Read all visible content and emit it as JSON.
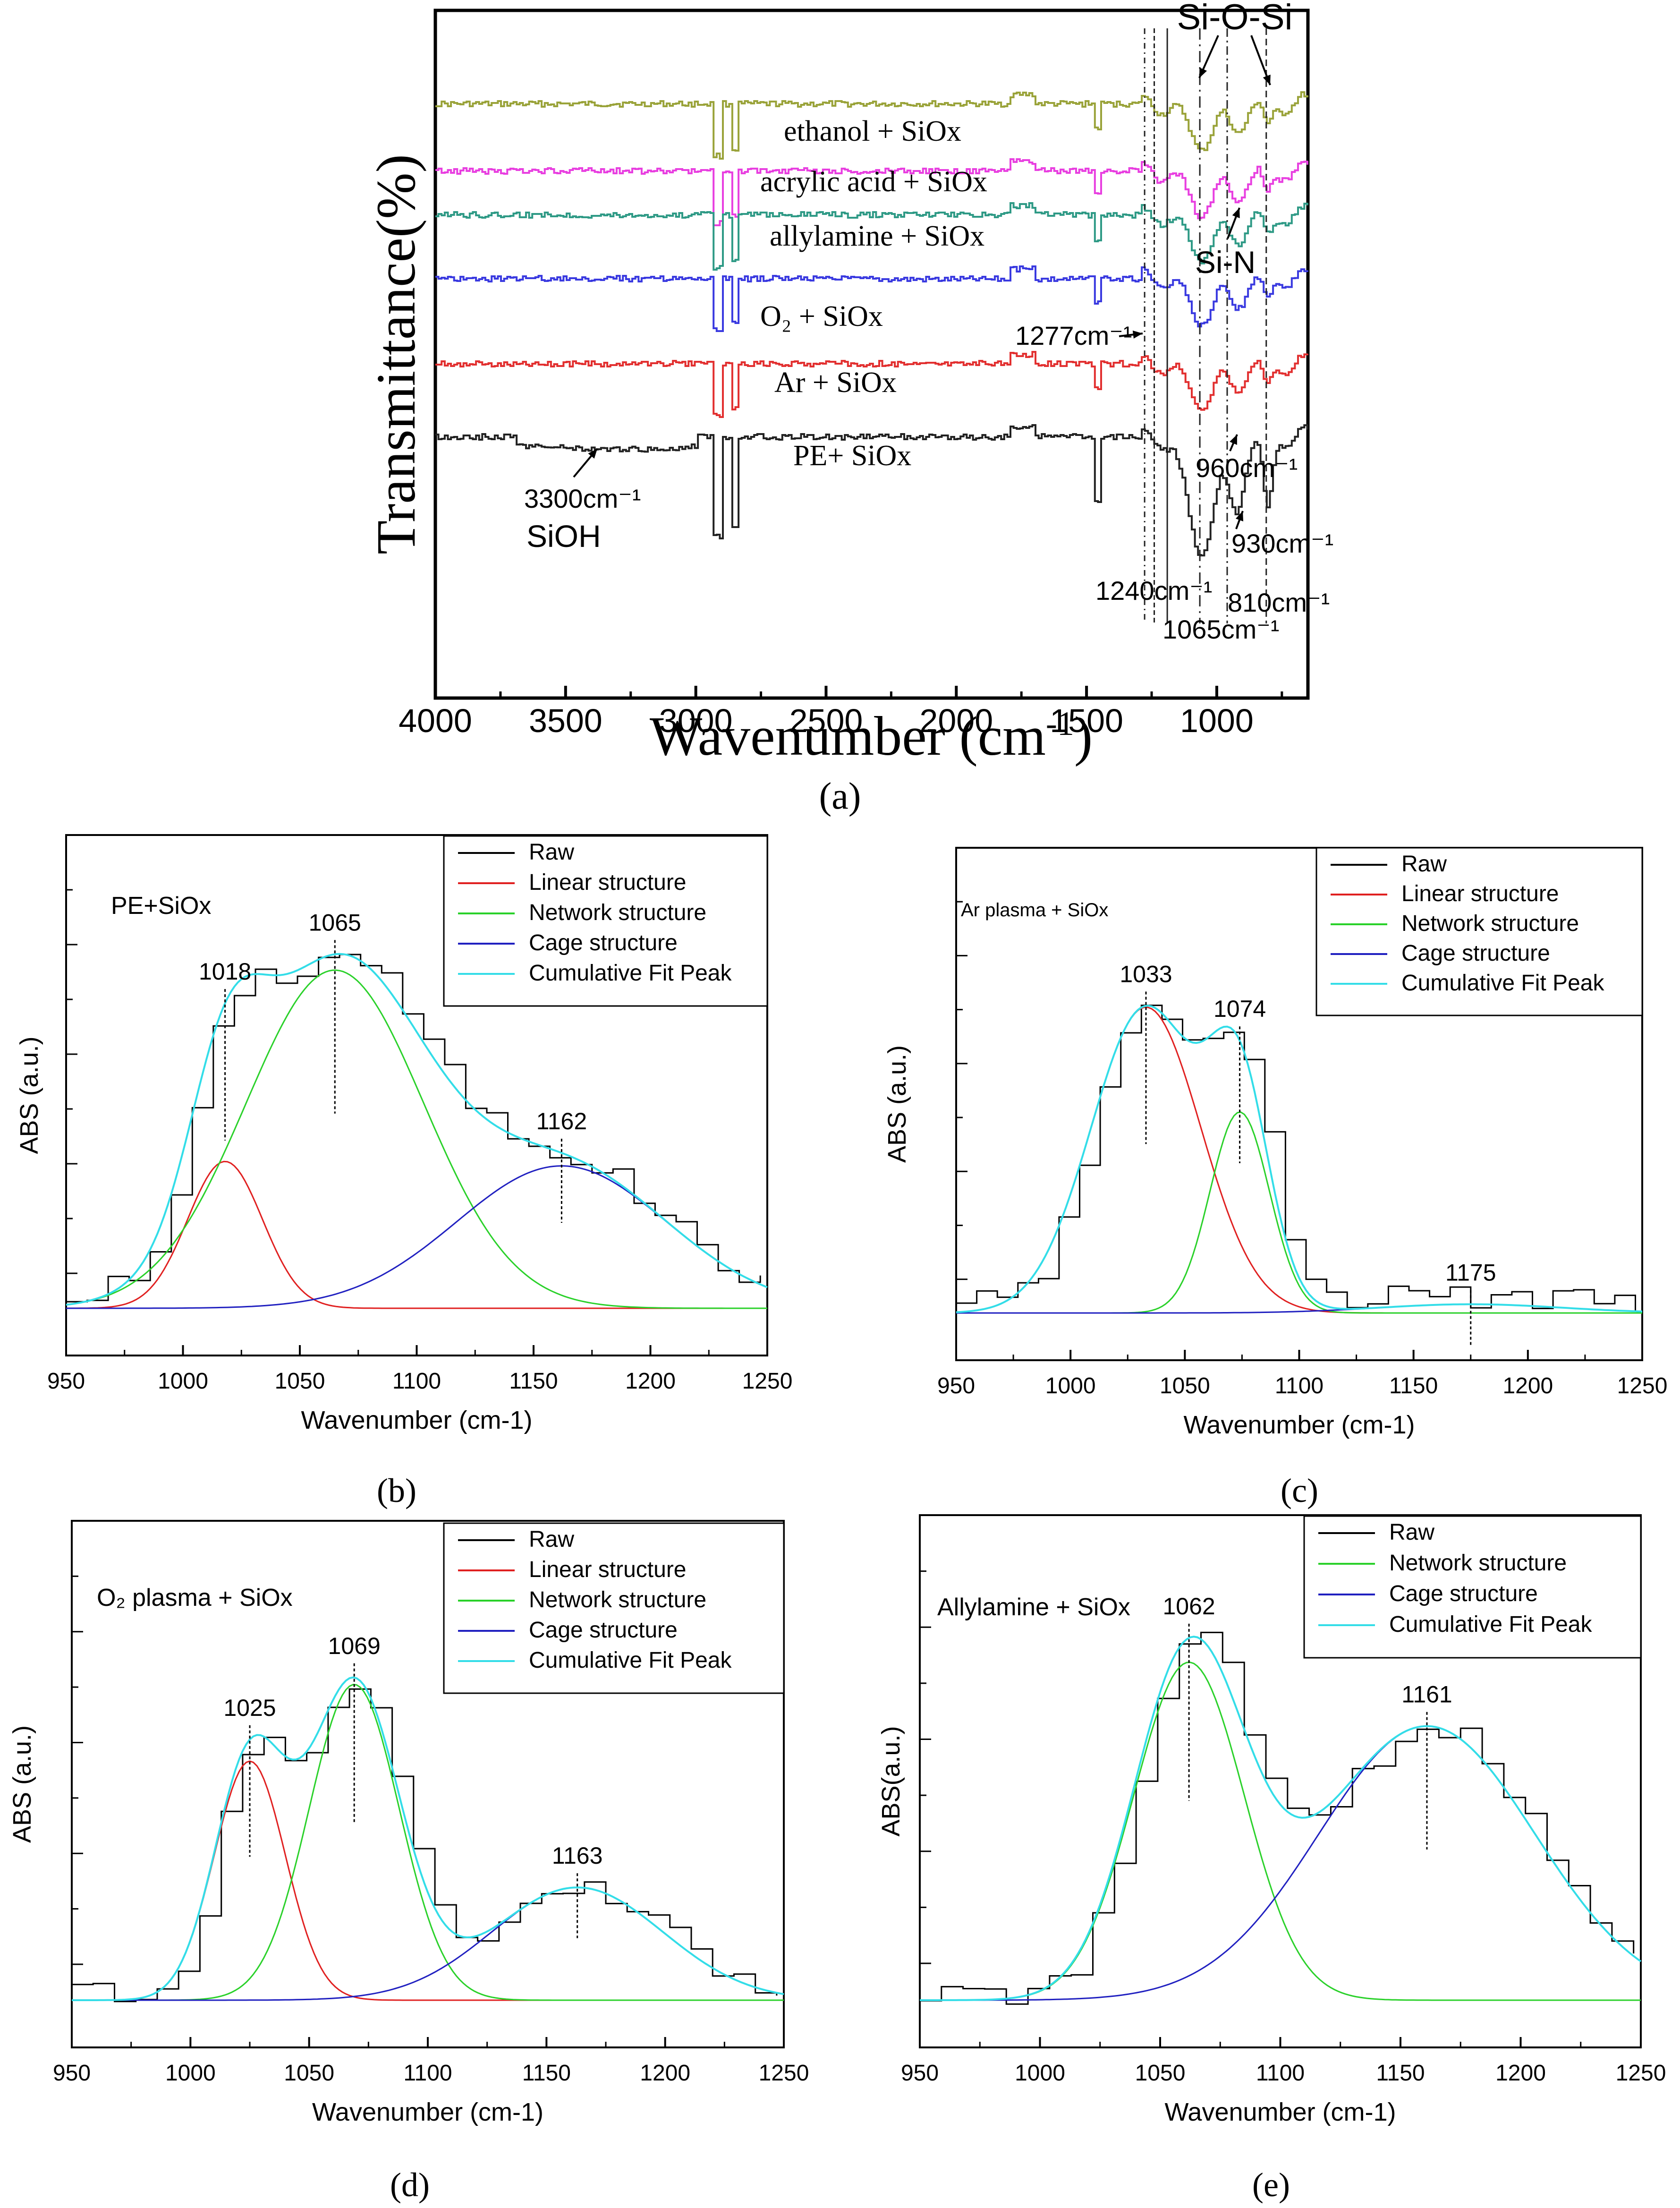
{
  "figure": {
    "panel_letters": [
      "(a)",
      "(b)",
      "(c)",
      "(d)",
      "(e)"
    ]
  },
  "chart_data": [
    {
      "id": "a",
      "type": "line",
      "ylabel": "Transmittance(%)",
      "xlabel": "Wavenumber (cm⁻¹)",
      "xlim": [
        4000,
        650
      ],
      "xticks": [
        4000,
        3500,
        3000,
        2500,
        2000,
        1500,
        1000
      ],
      "series": [
        {
          "name": "ethanol + SiOx",
          "color": "#9aa33a"
        },
        {
          "name": "acrylic acid + SiOx",
          "color": "#e83fe0"
        },
        {
          "name": "allylamine + SiOx",
          "color": "#2f9a86"
        },
        {
          "name": "O₂ + SiOx",
          "color": "#3a3ae0"
        },
        {
          "name": "Ar + SiOx",
          "color": "#e23030"
        },
        {
          "name": "PE+ SiOx",
          "color": "#222222"
        }
      ],
      "annotations": [
        {
          "text": "Si-O-Si",
          "x": 960
        },
        {
          "text": "Si-N",
          "x": 940
        },
        {
          "text": "1277cm⁻¹",
          "x": 1277
        },
        {
          "text": "1240cm⁻¹",
          "x": 1240
        },
        {
          "text": "1065cm⁻¹",
          "x": 1065
        },
        {
          "text": "960cm⁻¹",
          "x": 960
        },
        {
          "text": "930cm⁻¹",
          "x": 930
        },
        {
          "text": "810cm⁻¹",
          "x": 810
        },
        {
          "text": "3300cm⁻¹",
          "x": 3300
        },
        {
          "text": "SiOH",
          "x": 3300
        }
      ]
    },
    {
      "id": "b",
      "type": "line",
      "title": "PE+SiOx",
      "xlabel": "Wavenumber (cm-1)",
      "ylabel": "ABS (a.u.)",
      "xlim": [
        950,
        1250
      ],
      "xticks": [
        950,
        1000,
        1050,
        1100,
        1150,
        1200,
        1250
      ],
      "baseline": 0.05,
      "legend": [
        "Raw",
        "Linear structure",
        "Network structure",
        "Cage structure",
        "Cumulative Fit Peak"
      ],
      "peaks": [
        {
          "name": "Linear structure",
          "center": 1018,
          "height": 0.33,
          "width": 16,
          "color": "#e02020"
        },
        {
          "name": "Network structure",
          "center": 1065,
          "height": 0.76,
          "width": 38,
          "color": "#2ad12a"
        },
        {
          "name": "Cage structure",
          "center": 1162,
          "height": 0.32,
          "width": 45,
          "color": "#2020c0"
        }
      ],
      "peak_labels": [
        1018,
        1065,
        1162
      ]
    },
    {
      "id": "c",
      "type": "line",
      "title": "Ar plasma + SiOx",
      "xlabel": "Wavenumber (cm-1)",
      "ylabel": "ABS (a.u.)",
      "xlim": [
        950,
        1250
      ],
      "xticks": [
        950,
        1000,
        1050,
        1100,
        1150,
        1200,
        1250
      ],
      "baseline": 0.04,
      "legend": [
        "Raw",
        "Linear structure",
        "Network structure",
        "Cage structure",
        "Cumulative Fit Peak"
      ],
      "peaks": [
        {
          "name": "Linear structure",
          "center": 1033,
          "height": 0.7,
          "width": 24,
          "color": "#e02020"
        },
        {
          "name": "Network structure",
          "center": 1074,
          "height": 0.46,
          "width": 13,
          "color": "#2ad12a"
        },
        {
          "name": "Cage structure",
          "center": 1175,
          "height": 0.02,
          "width": 40,
          "color": "#2020c0"
        }
      ],
      "peak_labels": [
        1033,
        1074,
        1175
      ]
    },
    {
      "id": "d",
      "type": "line",
      "title": "O₂ plasma + SiOx",
      "xlabel": "Wavenumber (cm-1)",
      "ylabel": "ABS (a.u.)",
      "xlim": [
        950,
        1250
      ],
      "xticks": [
        950,
        1000,
        1050,
        1100,
        1150,
        1200,
        1250
      ],
      "baseline": 0.05,
      "legend": [
        "Raw",
        "Linear structure",
        "Network structure",
        "Cage structure",
        "Cumulative Fit Peak"
      ],
      "peaks": [
        {
          "name": "Linear structure",
          "center": 1025,
          "height": 0.53,
          "width": 15,
          "color": "#e02020"
        },
        {
          "name": "Network structure",
          "center": 1069,
          "height": 0.7,
          "width": 19,
          "color": "#2ad12a"
        },
        {
          "name": "Cage structure",
          "center": 1163,
          "height": 0.25,
          "width": 36,
          "color": "#2020c0"
        }
      ],
      "peak_labels": [
        1025,
        1069,
        1163
      ]
    },
    {
      "id": "e",
      "type": "line",
      "title": "Allylamine + SiOx",
      "xlabel": "Wavenumber (cm-1)",
      "ylabel": "ABS(a.u.)",
      "xlim": [
        950,
        1250
      ],
      "xticks": [
        950,
        1000,
        1050,
        1100,
        1150,
        1200,
        1250
      ],
      "baseline": 0.06,
      "legend": [
        "Raw",
        "Network structure",
        "Cage structure",
        "Cumulative Fit Peak"
      ],
      "peaks": [
        {
          "name": "Network structure",
          "center": 1062,
          "height": 0.74,
          "width": 23,
          "color": "#2ad12a"
        },
        {
          "name": "Cage structure",
          "center": 1161,
          "height": 0.6,
          "width": 45,
          "color": "#2020c0"
        }
      ],
      "peak_labels": [
        1062,
        1161
      ]
    }
  ],
  "colors": {
    "raw": "#000000",
    "cumulative": "#33dde8",
    "frame": "#000000"
  }
}
